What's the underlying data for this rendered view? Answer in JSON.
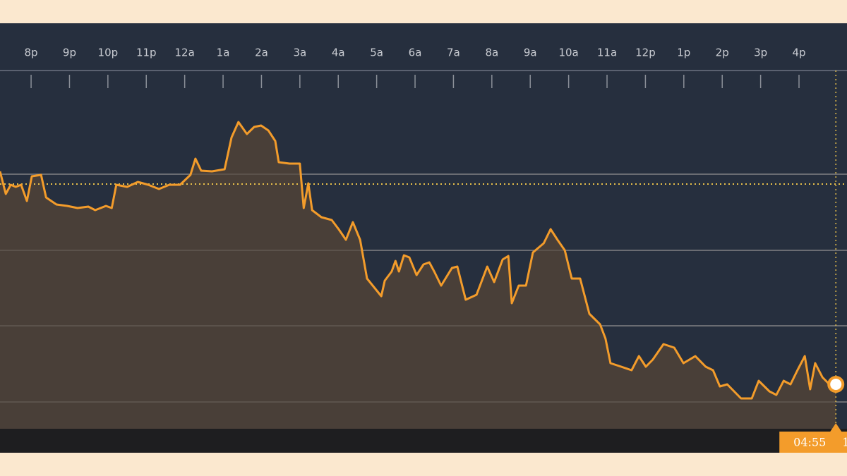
{
  "chart_data": {
    "type": "line",
    "color": "#f39c2b",
    "area_color": "#4b4038",
    "x": [
      -0.81,
      -0.66,
      -0.53,
      -0.4,
      -0.26,
      -0.11,
      0.02,
      0.26,
      0.39,
      0.66,
      0.94,
      1.21,
      1.49,
      1.67,
      1.95,
      2.1,
      2.22,
      2.5,
      2.78,
      3.05,
      3.33,
      3.6,
      3.88,
      4.15,
      4.28,
      4.43,
      4.71,
      5.04,
      5.22,
      5.4,
      5.62,
      5.81,
      5.99,
      6.18,
      6.36,
      6.45,
      6.73,
      7.0,
      7.1,
      7.22,
      7.32,
      7.56,
      7.83,
      8.01,
      8.2,
      8.38,
      8.57,
      8.75,
      9.12,
      9.21,
      9.39,
      9.49,
      9.58,
      9.71,
      9.85,
      10.04,
      10.22,
      10.37,
      10.5,
      10.68,
      10.96,
      11.1,
      11.32,
      11.6,
      11.88,
      12.06,
      12.28,
      12.43,
      12.52,
      12.7,
      12.89,
      13.07,
      13.35,
      13.53,
      13.71,
      13.9,
      14.08,
      14.3,
      14.54,
      14.82,
      14.96,
      15.09,
      15.37,
      15.64,
      15.83,
      16.01,
      16.19,
      16.47,
      16.75,
      16.99,
      17.3,
      17.57,
      17.76,
      17.94,
      18.13,
      18.49,
      18.77,
      18.95,
      19.23,
      19.41,
      19.6,
      19.78,
      19.96,
      20.15,
      20.29,
      20.42,
      20.61,
      20.79,
      20.96
    ],
    "values": [
      36.5,
      33.3,
      34.6,
      34.3,
      34.6,
      32.3,
      35.8,
      36.0,
      32.8,
      31.8,
      31.6,
      31.3,
      31.5,
      31.0,
      31.6,
      31.3,
      34.6,
      34.3,
      35.0,
      34.6,
      34.0,
      34.6,
      34.6,
      36.0,
      38.3,
      36.6,
      36.5,
      36.8,
      41.3,
      43.5,
      41.8,
      42.8,
      43.0,
      42.3,
      40.8,
      37.8,
      37.6,
      37.6,
      31.3,
      34.8,
      31.0,
      30.0,
      29.6,
      28.3,
      26.8,
      29.3,
      26.8,
      21.3,
      18.8,
      21.0,
      22.3,
      23.8,
      22.3,
      24.6,
      24.3,
      21.8,
      23.3,
      23.6,
      22.3,
      20.3,
      22.8,
      23.0,
      18.3,
      19.0,
      23.0,
      20.8,
      24.0,
      24.5,
      17.8,
      20.3,
      20.3,
      25.0,
      26.3,
      28.3,
      26.8,
      25.3,
      21.3,
      21.3,
      16.3,
      14.8,
      12.8,
      9.3,
      8.8,
      8.3,
      10.3,
      8.8,
      9.8,
      12.0,
      11.5,
      9.3,
      10.3,
      8.8,
      8.3,
      6.0,
      6.3,
      4.3,
      4.3,
      6.8,
      5.3,
      4.8,
      6.8,
      6.3,
      8.3,
      10.3,
      5.6,
      9.3,
      7.3,
      6.3,
      6.3
    ],
    "xlim": [
      -0.81,
      21.25
    ],
    "ylim": [
      0,
      50.8
    ],
    "xticks": [
      {
        "value": 0,
        "label": "8p"
      },
      {
        "value": 1,
        "label": "9p"
      },
      {
        "value": 2,
        "label": "10p"
      },
      {
        "value": 3,
        "label": "11p"
      },
      {
        "value": 4,
        "label": "12a"
      },
      {
        "value": 5,
        "label": "1a"
      },
      {
        "value": 6,
        "label": "2a"
      },
      {
        "value": 7,
        "label": "3a"
      },
      {
        "value": 8,
        "label": "4a"
      },
      {
        "value": 9,
        "label": "5a"
      },
      {
        "value": 10,
        "label": "6a"
      },
      {
        "value": 11,
        "label": "7a"
      },
      {
        "value": 12,
        "label": "8a"
      },
      {
        "value": 13,
        "label": "9a"
      },
      {
        "value": 14,
        "label": "10a"
      },
      {
        "value": 15,
        "label": "11a"
      },
      {
        "value": 16,
        "label": "12p"
      },
      {
        "value": 17,
        "label": "1p"
      },
      {
        "value": 18,
        "label": "2p"
      },
      {
        "value": 19,
        "label": "3p"
      },
      {
        "value": 20,
        "label": "4p"
      }
    ],
    "grid_lines": [
      3.8,
      14.6,
      25.3,
      36.1
    ],
    "reference_line": 34.7,
    "end_label": "04:55",
    "end_value_label": "1"
  }
}
